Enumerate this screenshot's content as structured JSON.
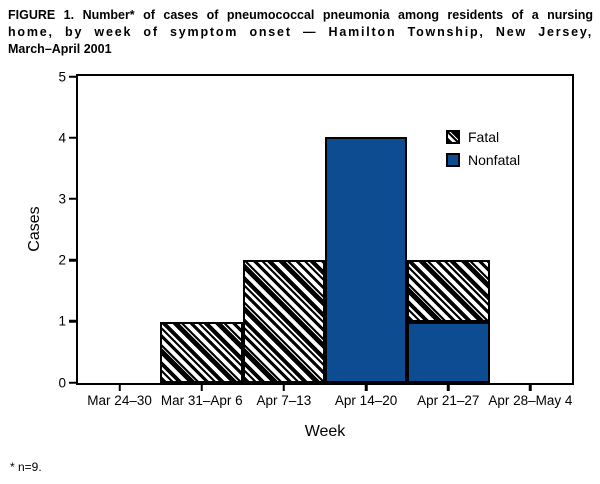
{
  "figure": {
    "title_lines": [
      "FIGURE 1. Number* of cases of pneumococcal pneumonia among residents of a nursing",
      "home, by week of symptom onset — Hamilton Township, New Jersey,",
      "March–April 2001"
    ],
    "footnote": "* n=9."
  },
  "colors": {
    "bar_blue": "#0E4C92",
    "hatch_line": "#000000",
    "axis": "#000000",
    "text": "#000000"
  },
  "chart_data": {
    "type": "bar",
    "stacked": true,
    "title": "Number of cases of pneumococcal pneumonia among residents of a nursing home, by week of symptom onset — Hamilton Township, New Jersey, March–April 2001",
    "categories": [
      "Mar 24–30",
      "Mar 31–Apr 6",
      "Apr 7–13",
      "Apr 14–20",
      "Apr 21–27",
      "Apr 28–May 4"
    ],
    "series": [
      {
        "name": "Fatal",
        "style": "hatched-diagonal",
        "values": [
          0,
          1,
          2,
          0,
          1,
          0
        ]
      },
      {
        "name": "Nonfatal",
        "style": "solid-blue",
        "values": [
          0,
          0,
          0,
          4,
          1,
          0
        ]
      }
    ],
    "stack_order_bottom_to_top": [
      "Nonfatal",
      "Fatal"
    ],
    "xlabel": "Week",
    "ylabel": "Cases",
    "ylim": [
      0,
      5
    ],
    "yticks": [
      0,
      1,
      2,
      3,
      4,
      5
    ],
    "grid": false,
    "legend": {
      "position": "top-right-inside",
      "entries": [
        "Fatal",
        "Nonfatal"
      ]
    }
  }
}
